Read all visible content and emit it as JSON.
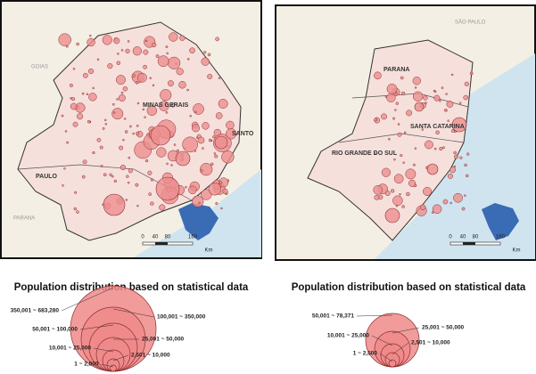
{
  "maps": [
    {
      "labels": [
        "GOIAS",
        "MINAS GERAIS",
        "SANTO",
        "PAULO",
        "PARANA"
      ],
      "scale": {
        "ticks": [
          "0",
          "40",
          "80",
          "160"
        ],
        "unit": "Km"
      }
    },
    {
      "labels": [
        "SÃO PAULO",
        "PARANA",
        "SANTA CATARINA",
        "RIO GRANDE DO SUL"
      ],
      "scale": {
        "ticks": [
          "0",
          "40",
          "80",
          "160"
        ],
        "unit": "Km"
      }
    }
  ],
  "legends": [
    {
      "title": "Population distribution based on statistical data",
      "classes": [
        "350,001 ~ 683,280",
        "100,001 ~ 350,000",
        "50,001 ~ 100,000",
        "25,001 ~ 50,000",
        "10,001 ~ 25,000",
        "2,501 ~ 10,000",
        "1 ~ 2,500"
      ]
    },
    {
      "title": "Population distribution based on statistical data",
      "classes": [
        "50,001 ~ 78,371",
        "25,001 ~ 50,000",
        "10,001 ~ 25,000",
        "2,501 ~ 10,000",
        "1 ~ 2,500"
      ]
    }
  ]
}
